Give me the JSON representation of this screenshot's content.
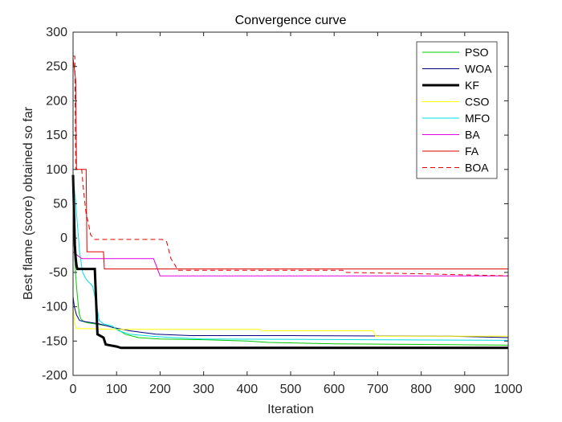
{
  "chart_data": {
    "type": "line",
    "title": "Convergence curve",
    "xlabel": "Iteration",
    "ylabel": "Best flame (score) obtained so far",
    "xlim": [
      0,
      1000
    ],
    "ylim": [
      -200,
      300
    ],
    "xticks": [
      0,
      100,
      200,
      300,
      400,
      500,
      600,
      700,
      800,
      900,
      1000
    ],
    "yticks": [
      -200,
      -150,
      -100,
      -50,
      0,
      50,
      100,
      150,
      200,
      250,
      300
    ],
    "grid": false,
    "legend_position": "top-right",
    "series": [
      {
        "name": "PSO",
        "color": "#00cc00",
        "width": 1,
        "dash": "",
        "points": [
          [
            0,
            78
          ],
          [
            3,
            -20
          ],
          [
            6,
            -55
          ],
          [
            10,
            -85
          ],
          [
            14,
            -110
          ],
          [
            18,
            -118
          ],
          [
            25,
            -122
          ],
          [
            40,
            -124
          ],
          [
            60,
            -126
          ],
          [
            80,
            -128
          ],
          [
            100,
            -132
          ],
          [
            120,
            -140
          ],
          [
            150,
            -145
          ],
          [
            200,
            -147
          ],
          [
            300,
            -148
          ],
          [
            400,
            -150
          ],
          [
            450,
            -152
          ],
          [
            600,
            -154
          ],
          [
            1000,
            -156
          ]
        ]
      },
      {
        "name": "WOA",
        "color": "#000080",
        "width": 1,
        "dash": "",
        "points": [
          [
            0,
            -85
          ],
          [
            3,
            -100
          ],
          [
            8,
            -112
          ],
          [
            15,
            -120
          ],
          [
            30,
            -122
          ],
          [
            60,
            -125
          ],
          [
            90,
            -130
          ],
          [
            130,
            -135
          ],
          [
            190,
            -140
          ],
          [
            270,
            -142
          ],
          [
            500,
            -142
          ],
          [
            870,
            -143
          ],
          [
            1000,
            -145
          ]
        ]
      },
      {
        "name": "KF",
        "color": "#000000",
        "width": 3,
        "dash": "",
        "points": [
          [
            0,
            92
          ],
          [
            2,
            40
          ],
          [
            4,
            -10
          ],
          [
            6,
            -30
          ],
          [
            8,
            -40
          ],
          [
            10,
            -45
          ],
          [
            50,
            -45
          ],
          [
            56,
            -140
          ],
          [
            70,
            -145
          ],
          [
            75,
            -155
          ],
          [
            100,
            -158
          ],
          [
            110,
            -160
          ],
          [
            1000,
            -160
          ]
        ]
      },
      {
        "name": "CSO",
        "color": "#ffff00",
        "width": 1,
        "dash": "",
        "points": [
          [
            0,
            -100
          ],
          [
            4,
            -125
          ],
          [
            8,
            -132
          ],
          [
            40,
            -132
          ],
          [
            90,
            -133
          ],
          [
            430,
            -133
          ],
          [
            435,
            -135
          ],
          [
            690,
            -135
          ],
          [
            695,
            -143
          ],
          [
            870,
            -143
          ],
          [
            1000,
            -143
          ]
        ]
      },
      {
        "name": "MFO",
        "color": "#00e0e0",
        "width": 1,
        "dash": "",
        "points": [
          [
            0,
            90
          ],
          [
            5,
            60
          ],
          [
            10,
            20
          ],
          [
            15,
            -20
          ],
          [
            22,
            -50
          ],
          [
            30,
            -60
          ],
          [
            45,
            -70
          ],
          [
            55,
            -100
          ],
          [
            60,
            -120
          ],
          [
            70,
            -125
          ],
          [
            90,
            -128
          ],
          [
            105,
            -135
          ],
          [
            130,
            -140
          ],
          [
            180,
            -143
          ],
          [
            230,
            -145
          ],
          [
            300,
            -147
          ],
          [
            1000,
            -149
          ]
        ]
      },
      {
        "name": "BA",
        "color": "#e000e0",
        "width": 1,
        "dash": "",
        "points": [
          [
            0,
            -20
          ],
          [
            10,
            -25
          ],
          [
            20,
            -30
          ],
          [
            185,
            -30
          ],
          [
            200,
            -55
          ],
          [
            1000,
            -55
          ]
        ]
      },
      {
        "name": "FA",
        "color": "#e00000",
        "width": 1,
        "dash": "",
        "points": [
          [
            0,
            262
          ],
          [
            6,
            230
          ],
          [
            8,
            100
          ],
          [
            30,
            100
          ],
          [
            32,
            -20
          ],
          [
            70,
            -20
          ],
          [
            72,
            -45
          ],
          [
            1000,
            -45
          ]
        ]
      },
      {
        "name": "BOA",
        "color": "#e00000",
        "width": 1,
        "dash": "6,4",
        "points": [
          [
            0,
            265
          ],
          [
            4,
            265
          ],
          [
            6,
            100
          ],
          [
            20,
            100
          ],
          [
            24,
            70
          ],
          [
            30,
            35
          ],
          [
            36,
            20
          ],
          [
            40,
            5
          ],
          [
            50,
            -2
          ],
          [
            205,
            -2
          ],
          [
            215,
            -5
          ],
          [
            225,
            -30
          ],
          [
            235,
            -40
          ],
          [
            240,
            -47
          ],
          [
            620,
            -47
          ],
          [
            625,
            -50
          ],
          [
            800,
            -52
          ],
          [
            1000,
            -55
          ]
        ]
      }
    ]
  }
}
